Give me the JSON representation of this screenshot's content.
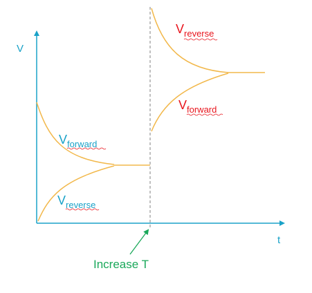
{
  "axes": {
    "y_label": "V",
    "x_label": "t",
    "axis_color": "#1aa2c8"
  },
  "curves": {
    "color": "#f2b84b"
  },
  "labels": {
    "before": {
      "forward": {
        "main": "V",
        "sub": "forward"
      },
      "reverse": {
        "main": "V",
        "sub": "reverse"
      },
      "color": "#1aa2c8"
    },
    "after": {
      "reverse": {
        "main": "V",
        "sub": "reverse"
      },
      "forward": {
        "main": "V",
        "sub": "forward"
      },
      "color": "#e8141c"
    }
  },
  "annotation": {
    "text": "Increase T",
    "color": "#1aa85a"
  },
  "divider_color": "#808080",
  "squiggle_color": "#e8141c"
}
